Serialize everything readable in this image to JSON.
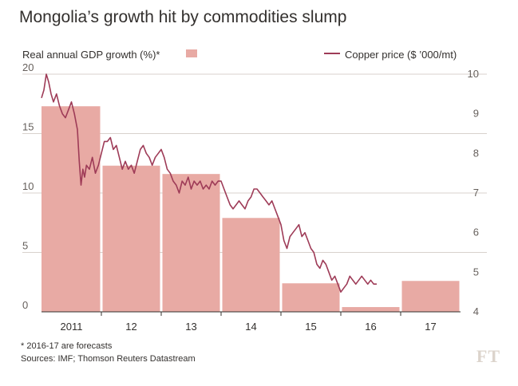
{
  "title": "Mongolia’s growth hit by commodities slump",
  "footnote": "* 2016-17 are forecasts",
  "source": "Sources: IMF; Thomson Reuters Datastream",
  "logo": "FT",
  "colors": {
    "bar": "#e8aaa4",
    "line": "#9e3b57",
    "grid": "#d8d2cc",
    "axis": "#33302e",
    "tick_text": "#66605c"
  },
  "chart_data": {
    "type": "bar+line",
    "grid": true,
    "legend_position": "top",
    "bar_series": {
      "name": "Real annual GDP growth (%)*",
      "axis": "left",
      "categories": [
        "2011",
        "12",
        "13",
        "14",
        "15",
        "16",
        "17"
      ],
      "values": [
        17.3,
        12.3,
        11.6,
        7.9,
        2.4,
        0.4,
        2.6
      ]
    },
    "line_series": {
      "name": "Copper price ($ ’000/mt)",
      "axis": "right",
      "x": [
        2011.0,
        2011.04,
        2011.08,
        2011.12,
        2011.16,
        2011.2,
        2011.25,
        2011.3,
        2011.35,
        2011.4,
        2011.45,
        2011.5,
        2011.55,
        2011.6,
        2011.63,
        2011.66,
        2011.69,
        2011.72,
        2011.75,
        2011.8,
        2011.85,
        2011.9,
        2011.95,
        2012.0,
        2012.05,
        2012.1,
        2012.15,
        2012.2,
        2012.25,
        2012.3,
        2012.35,
        2012.4,
        2012.45,
        2012.5,
        2012.55,
        2012.6,
        2012.65,
        2012.7,
        2012.75,
        2012.8,
        2012.85,
        2012.9,
        2012.95,
        2013.0,
        2013.05,
        2013.1,
        2013.15,
        2013.2,
        2013.25,
        2013.3,
        2013.35,
        2013.4,
        2013.45,
        2013.5,
        2013.55,
        2013.6,
        2013.65,
        2013.7,
        2013.75,
        2013.8,
        2013.85,
        2013.9,
        2013.95,
        2014.0,
        2014.05,
        2014.1,
        2014.15,
        2014.2,
        2014.25,
        2014.3,
        2014.35,
        2014.4,
        2014.45,
        2014.5,
        2014.55,
        2014.6,
        2014.65,
        2014.7,
        2014.75,
        2014.8,
        2014.85,
        2014.9,
        2014.95,
        2015.0,
        2015.05,
        2015.1,
        2015.15,
        2015.2,
        2015.25,
        2015.3,
        2015.35,
        2015.4,
        2015.45,
        2015.5,
        2015.55,
        2015.6,
        2015.65,
        2015.7,
        2015.75,
        2015.8,
        2015.85,
        2015.9,
        2015.95,
        2016.0,
        2016.05,
        2016.1,
        2016.15,
        2016.2,
        2016.25,
        2016.3,
        2016.35,
        2016.4,
        2016.45,
        2016.5,
        2016.55,
        2016.6
      ],
      "values": [
        9.4,
        9.6,
        10.0,
        9.8,
        9.5,
        9.3,
        9.5,
        9.2,
        9.0,
        8.9,
        9.1,
        9.3,
        9.0,
        8.6,
        7.8,
        7.2,
        7.6,
        7.4,
        7.7,
        7.6,
        7.9,
        7.5,
        7.7,
        8.0,
        8.3,
        8.3,
        8.4,
        8.1,
        8.2,
        7.9,
        7.6,
        7.8,
        7.6,
        7.7,
        7.5,
        7.8,
        8.1,
        8.2,
        8.0,
        7.9,
        7.7,
        7.9,
        8.0,
        8.1,
        7.9,
        7.6,
        7.5,
        7.3,
        7.2,
        7.0,
        7.3,
        7.2,
        7.4,
        7.1,
        7.3,
        7.2,
        7.3,
        7.1,
        7.2,
        7.1,
        7.3,
        7.2,
        7.3,
        7.3,
        7.1,
        6.9,
        6.7,
        6.6,
        6.7,
        6.8,
        6.7,
        6.6,
        6.8,
        6.9,
        7.1,
        7.1,
        7.0,
        6.9,
        6.8,
        6.7,
        6.8,
        6.6,
        6.4,
        6.2,
        5.8,
        5.6,
        5.9,
        6.0,
        6.1,
        6.2,
        5.9,
        6.0,
        5.8,
        5.6,
        5.5,
        5.2,
        5.1,
        5.3,
        5.2,
        5.0,
        4.8,
        4.9,
        4.7,
        4.5,
        4.6,
        4.7,
        4.9,
        4.8,
        4.7,
        4.8,
        4.9,
        4.8,
        4.7,
        4.8,
        4.7,
        4.7
      ]
    },
    "y_left": {
      "min": 0,
      "max": 20,
      "ticks": [
        "0",
        "5",
        "10",
        "15",
        "20"
      ]
    },
    "y_right": {
      "min": 4,
      "max": 10,
      "ticks": [
        "4",
        "5",
        "6",
        "7",
        "8",
        "9",
        "10"
      ]
    },
    "legend": {
      "bar_label": "Real annual GDP growth (%)*",
      "line_label": "Copper price ($ ’000/mt)"
    }
  }
}
